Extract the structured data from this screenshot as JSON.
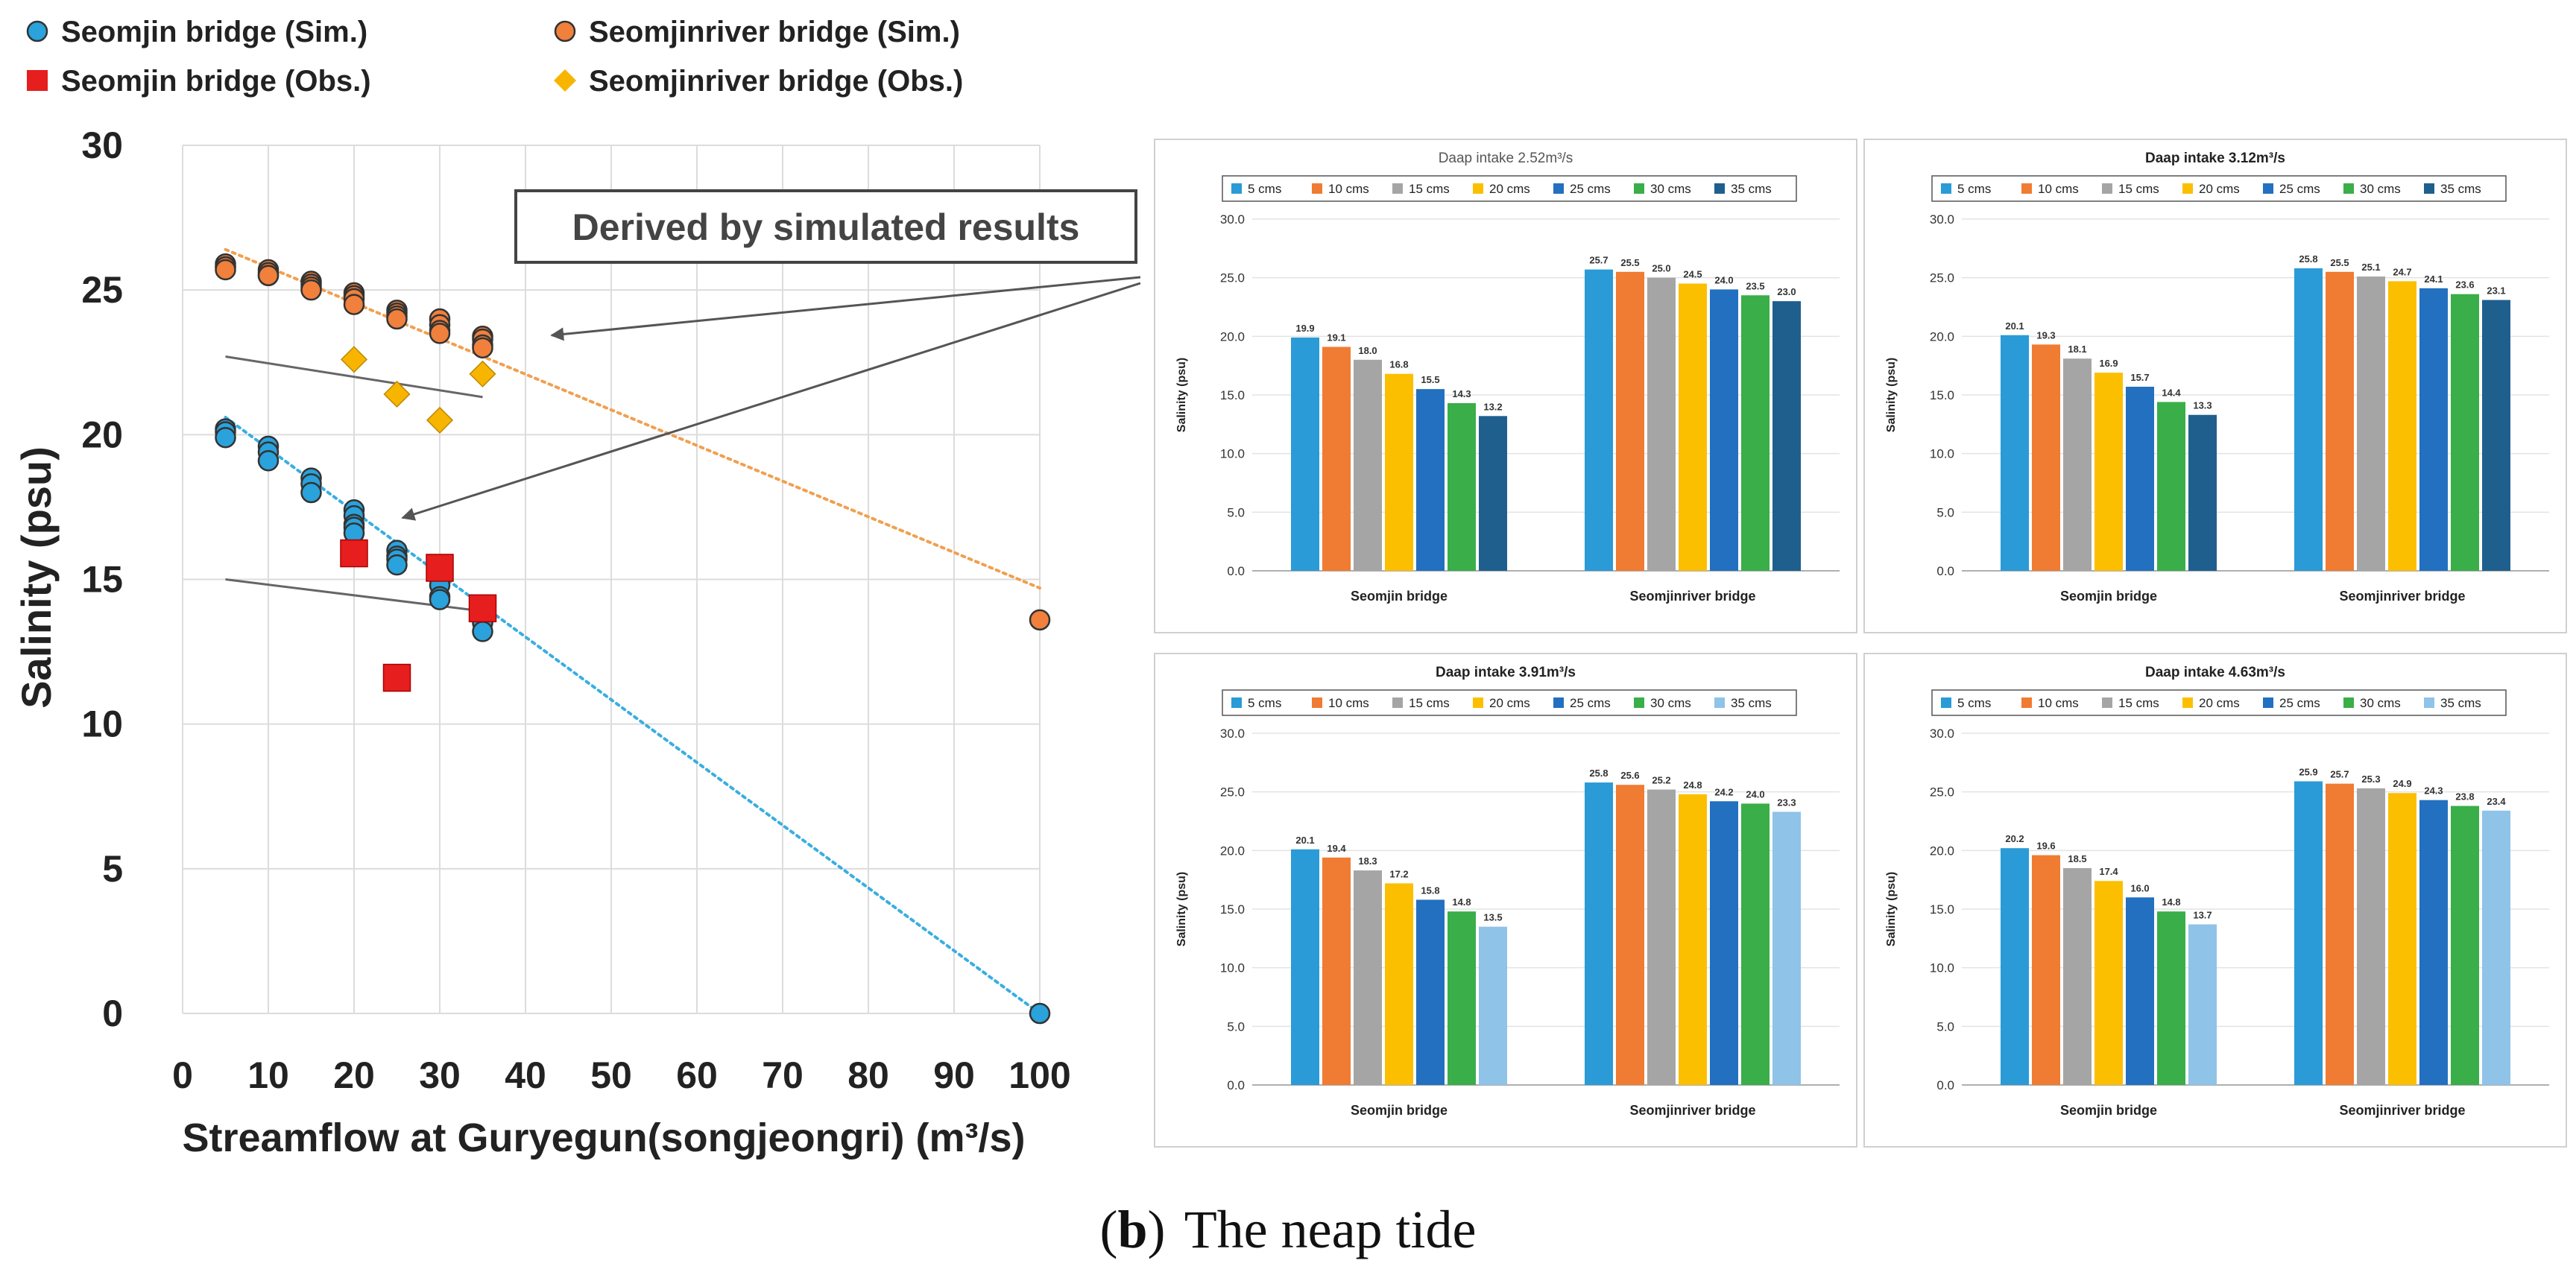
{
  "caption": {
    "label": "b",
    "text": "The  neap  tide"
  },
  "colors": {
    "sim_blue": "#2aa2dc",
    "sim_orange": "#f0803c",
    "obs_red": "#e61e1e",
    "obs_gold": "#f7b500",
    "trend_orange": "#f0a050",
    "trend_blue": "#3aaee0",
    "arrow": "#555555",
    "bar_5": "#2a9bd6",
    "bar_10": "#f07b32",
    "bar_15": "#a5a5a5",
    "bar_20": "#fcbf00",
    "bar_25": "#2270bf",
    "bar_30": "#3aae48",
    "bar_35_dark": "#1f5f8e",
    "bar_35_light": "#8fc3e8"
  },
  "annotation": {
    "text": "Derived by simulated results"
  },
  "chart_data": [
    {
      "type": "scatter",
      "xlabel": "Streamflow at Guryegun(songjeongri) (m³/s)",
      "ylabel": "Salinity (psu)",
      "xlim": [
        0,
        100
      ],
      "ylim": [
        0,
        30
      ],
      "xticks": [
        "0",
        "10",
        "20",
        "30",
        "40",
        "50",
        "60",
        "70",
        "80",
        "90",
        "100"
      ],
      "yticks": [
        "0",
        "5",
        "10",
        "15",
        "20",
        "25",
        "30"
      ],
      "grid": true,
      "legend": [
        "Seomjin bridge (Sim.)",
        "Seomjinriver bridge (Sim.)",
        "Seomjin bridge (Obs.)",
        "Seomjinriver bridge (Obs.)"
      ],
      "series": [
        {
          "name": "Seomjin bridge (Sim.)",
          "marker": "circle",
          "color": "#2aa2dc",
          "x": [
            5,
            5,
            5,
            10,
            10,
            10,
            15,
            15,
            15,
            20,
            20,
            20,
            20,
            20,
            25,
            25,
            25,
            25,
            30,
            30,
            30,
            35,
            35,
            35,
            35,
            100
          ],
          "y": [
            20.2,
            20.1,
            19.9,
            19.6,
            19.4,
            19.1,
            18.5,
            18.3,
            18.0,
            17.4,
            17.2,
            16.9,
            16.8,
            16.6,
            16.0,
            15.8,
            15.7,
            15.5,
            14.8,
            14.4,
            14.3,
            14.0,
            13.7,
            13.5,
            13.2,
            0.0
          ]
        },
        {
          "name": "Seomjinriver bridge (Sim.)",
          "marker": "circle",
          "color": "#f0803c",
          "x": [
            5,
            5,
            5,
            5,
            10,
            10,
            10,
            10,
            15,
            15,
            15,
            15,
            20,
            20,
            20,
            20,
            25,
            25,
            25,
            25,
            30,
            30,
            30,
            30,
            35,
            35,
            35,
            35,
            100
          ],
          "y": [
            25.9,
            25.8,
            25.8,
            25.7,
            25.7,
            25.6,
            25.5,
            25.5,
            25.3,
            25.2,
            25.1,
            25.0,
            24.9,
            24.8,
            24.7,
            24.5,
            24.3,
            24.2,
            24.1,
            24.0,
            24.0,
            23.8,
            23.6,
            23.5,
            23.4,
            23.3,
            23.1,
            23.0,
            13.6
          ]
        },
        {
          "name": "Seomjin bridge (Obs.)",
          "marker": "square",
          "color": "#e61e1e",
          "x": [
            20,
            25,
            30,
            35
          ],
          "y": [
            15.9,
            11.6,
            15.4,
            14.0
          ]
        },
        {
          "name": "Seomjinriver bridge (Obs.)",
          "marker": "diamond",
          "color": "#f7b500",
          "x": [
            20,
            25,
            30,
            35
          ],
          "y": [
            22.6,
            21.4,
            20.5,
            22.1
          ]
        }
      ],
      "trend_lines": [
        {
          "series": "Seomjinriver bridge (Sim.)",
          "style": "dotted",
          "color": "#f0a050",
          "x": [
            5,
            100
          ],
          "y": [
            26.4,
            14.7
          ]
        },
        {
          "series": "Seomjin bridge (Sim.)",
          "style": "dotted",
          "color": "#3aaee0",
          "x": [
            5,
            100
          ],
          "y": [
            20.6,
            0.0
          ]
        },
        {
          "series": "Seomjinriver bridge (Obs.)",
          "style": "solid",
          "color": "#666666",
          "x": [
            5,
            35
          ],
          "y": [
            22.7,
            21.3
          ]
        },
        {
          "series": "Seomjin bridge (Obs.)",
          "style": "solid",
          "color": "#666666",
          "x": [
            5,
            35
          ],
          "y": [
            15.0,
            13.9
          ]
        }
      ]
    },
    {
      "type": "bar",
      "title": "Daap intake 2.52m³/s",
      "title_bold": false,
      "palette": "dark",
      "ylabel": "Salinity (psu)",
      "ylim": [
        0,
        30
      ],
      "yticks": [
        "0.0",
        "5.0",
        "10.0",
        "15.0",
        "20.0",
        "25.0",
        "30.0"
      ],
      "categories": [
        "Seomjin bridge",
        "Seomjinriver bridge"
      ],
      "series": [
        {
          "name": "5 cms",
          "values": [
            19.9,
            25.7
          ],
          "labels": [
            "19.9",
            "25.7"
          ]
        },
        {
          "name": "10 cms",
          "values": [
            19.1,
            25.5
          ],
          "labels": [
            "19.1",
            "25.5"
          ]
        },
        {
          "name": "15 cms",
          "values": [
            18.0,
            25.0
          ],
          "labels": [
            "18.0",
            "25.0"
          ]
        },
        {
          "name": "20 cms",
          "values": [
            16.8,
            24.5
          ],
          "labels": [
            "16.8",
            "24.5"
          ]
        },
        {
          "name": "25 cms",
          "values": [
            15.5,
            24.0
          ],
          "labels": [
            "15.5",
            "24.0"
          ]
        },
        {
          "name": "30 cms",
          "values": [
            14.3,
            23.5
          ],
          "labels": [
            "14.3",
            "23.5"
          ]
        },
        {
          "name": "35 cms",
          "values": [
            13.2,
            23.0
          ],
          "labels": [
            "13.2",
            "23.0"
          ]
        }
      ]
    },
    {
      "type": "bar",
      "title": "Daap intake 3.12m³/s",
      "title_bold": true,
      "palette": "dark",
      "ylabel": "Salinity (psu)",
      "ylim": [
        0,
        30
      ],
      "yticks": [
        "0.0",
        "5.0",
        "10.0",
        "15.0",
        "20.0",
        "25.0",
        "30.0"
      ],
      "categories": [
        "Seomjin bridge",
        "Seomjinriver bridge"
      ],
      "series": [
        {
          "name": "5 cms",
          "values": [
            20.1,
            25.8
          ],
          "labels": [
            "20.1",
            "25.8"
          ]
        },
        {
          "name": "10 cms",
          "values": [
            19.3,
            25.5
          ],
          "labels": [
            "19.3",
            "25.5"
          ]
        },
        {
          "name": "15 cms",
          "values": [
            18.1,
            25.1
          ],
          "labels": [
            "18.1",
            "25.1"
          ]
        },
        {
          "name": "20 cms",
          "values": [
            16.9,
            24.7
          ],
          "labels": [
            "16.9",
            "24.7"
          ]
        },
        {
          "name": "25 cms",
          "values": [
            15.7,
            24.1
          ],
          "labels": [
            "15.7",
            "24.1"
          ]
        },
        {
          "name": "30 cms",
          "values": [
            14.4,
            23.6
          ],
          "labels": [
            "14.4",
            "23.6"
          ]
        },
        {
          "name": "35 cms",
          "values": [
            13.3,
            23.1
          ],
          "labels": [
            "13.3",
            "23.1"
          ]
        }
      ]
    },
    {
      "type": "bar",
      "title": "Daap intake 3.91m³/s",
      "title_bold": true,
      "palette": "light",
      "ylabel": "Salinity (psu)",
      "ylim": [
        0,
        30
      ],
      "yticks": [
        "0.0",
        "5.0",
        "10.0",
        "15.0",
        "20.0",
        "25.0",
        "30.0"
      ],
      "categories": [
        "Seomjin bridge",
        "Seomjinriver bridge"
      ],
      "series": [
        {
          "name": "5 cms",
          "values": [
            20.1,
            25.8
          ],
          "labels": [
            "20.1",
            "25.8"
          ]
        },
        {
          "name": "10 cms",
          "values": [
            19.4,
            25.6
          ],
          "labels": [
            "19.4",
            "25.6"
          ]
        },
        {
          "name": "15 cms",
          "values": [
            18.3,
            25.2
          ],
          "labels": [
            "18.3",
            "25.2"
          ]
        },
        {
          "name": "20 cms",
          "values": [
            17.2,
            24.8
          ],
          "labels": [
            "17.2",
            "24.8"
          ]
        },
        {
          "name": "25 cms",
          "values": [
            15.8,
            24.2
          ],
          "labels": [
            "15.8",
            "24.2"
          ]
        },
        {
          "name": "30 cms",
          "values": [
            14.8,
            24.0
          ],
          "labels": [
            "14.8",
            "24.0"
          ]
        },
        {
          "name": "35 cms",
          "values": [
            13.5,
            23.3
          ],
          "labels": [
            "13.5",
            "23.3"
          ]
        }
      ]
    },
    {
      "type": "bar",
      "title": "Daap intake 4.63m³/s",
      "title_bold": true,
      "palette": "light",
      "ylabel": "Salinity (psu)",
      "ylim": [
        0,
        30
      ],
      "yticks": [
        "0.0",
        "5.0",
        "10.0",
        "15.0",
        "20.0",
        "25.0",
        "30.0"
      ],
      "categories": [
        "Seomjin bridge",
        "Seomjinriver bridge"
      ],
      "series": [
        {
          "name": "5 cms",
          "values": [
            20.2,
            25.9
          ],
          "labels": [
            "20.2",
            "25.9"
          ]
        },
        {
          "name": "10 cms",
          "values": [
            19.6,
            25.7
          ],
          "labels": [
            "19.6",
            "25.7"
          ]
        },
        {
          "name": "15 cms",
          "values": [
            18.5,
            25.3
          ],
          "labels": [
            "18.5",
            "25.3"
          ]
        },
        {
          "name": "20 cms",
          "values": [
            17.4,
            24.9
          ],
          "labels": [
            "17.4",
            "24.9"
          ]
        },
        {
          "name": "25 cms",
          "values": [
            16.0,
            24.3
          ],
          "labels": [
            "16.0",
            "24.3"
          ]
        },
        {
          "name": "30 cms",
          "values": [
            14.8,
            23.8
          ],
          "labels": [
            "14.8",
            "23.8"
          ]
        },
        {
          "name": "35 cms",
          "values": [
            13.7,
            23.4
          ],
          "labels": [
            "13.7",
            "23.4"
          ]
        }
      ]
    }
  ]
}
